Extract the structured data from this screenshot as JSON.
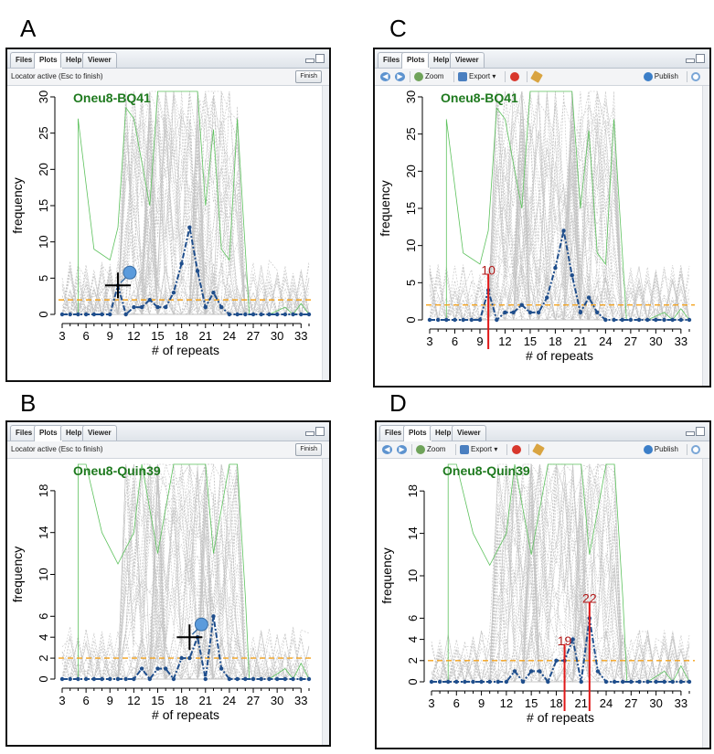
{
  "colors": {
    "gray_line": "#c4c4c4",
    "green_line": "#5ec25e",
    "blue_line": "#1f4e8c",
    "threshold": "#f4a21d",
    "title_green": "#1f7a1f",
    "marker_red": "#e01818",
    "marker_label": "#b11818"
  },
  "panels": [
    {
      "letter": "A",
      "tabs": [
        "Files",
        "Plots",
        "Help",
        "Viewer"
      ],
      "active_tab": "Plots",
      "toolbar_mode": "locator",
      "locator_text": "Locator active (Esc to finish)",
      "finish_label": "Finish",
      "plot_title": "Oneu8-BQ41",
      "cursor": "crosshair-pin-icon",
      "markers": [],
      "chart_data": {
        "type": "line",
        "xlabel": "# of repeats",
        "ylabel": "frequency",
        "xlim": [
          3,
          34
        ],
        "ylim": [
          0,
          30
        ],
        "x_ticks": [
          3,
          6,
          9,
          12,
          15,
          18,
          21,
          24,
          27,
          30,
          33
        ],
        "y_ticks": [
          0,
          5,
          10,
          15,
          20,
          25,
          30
        ],
        "threshold": 2,
        "series": [
          {
            "x": [
              3,
              4,
              5,
              6,
              7,
              8,
              9,
              10,
              11,
              12,
              13,
              14,
              15,
              16,
              17,
              18,
              19,
              20,
              21,
              22,
              23,
              24,
              25,
              26,
              27,
              28,
              29,
              30,
              31,
              32,
              33,
              34
            ],
            "values": [
              0,
              0,
              0,
              0,
              0,
              0,
              0,
              4,
              0,
              1,
              1,
              2,
              1,
              1,
              3,
              7,
              12,
              6,
              1,
              3,
              1,
              0,
              0,
              0,
              0,
              0,
              0,
              0,
              0,
              0,
              0,
              0
            ]
          }
        ]
      }
    },
    {
      "letter": "B",
      "tabs": [
        "Files",
        "Plots",
        "Help",
        "Viewer"
      ],
      "active_tab": "Plots",
      "toolbar_mode": "locator",
      "locator_text": "Locator active (Esc to finish)",
      "finish_label": "Finish",
      "plot_title": "Oneu8-Quin39",
      "cursor": "crosshair-pin-icon",
      "markers": [],
      "chart_data": {
        "type": "line",
        "xlabel": "# of repeats",
        "ylabel": "frequency",
        "xlim": [
          3,
          34
        ],
        "ylim": [
          0,
          20
        ],
        "x_ticks": [
          3,
          6,
          9,
          12,
          15,
          18,
          21,
          24,
          27,
          30,
          33
        ],
        "y_ticks": [
          0,
          2,
          4,
          6,
          10,
          14,
          18
        ],
        "threshold": 2,
        "series": [
          {
            "x": [
              3,
              4,
              5,
              6,
              7,
              8,
              9,
              10,
              11,
              12,
              13,
              14,
              15,
              16,
              17,
              18,
              19,
              20,
              21,
              22,
              23,
              24,
              25,
              26,
              27,
              28,
              29,
              30,
              31,
              32,
              33,
              34
            ],
            "values": [
              0,
              0,
              0,
              0,
              0,
              0,
              0,
              0,
              0,
              0,
              1,
              0,
              1,
              1,
              0,
              2,
              2,
              4,
              0,
              6,
              1,
              0,
              0,
              0,
              0,
              0,
              0,
              0,
              0,
              0,
              0,
              0
            ]
          }
        ]
      }
    },
    {
      "letter": "C",
      "tabs": [
        "Files",
        "Plots",
        "Help",
        "Viewer"
      ],
      "active_tab": "Plots",
      "toolbar_mode": "plots",
      "zoom_label": "Zoom",
      "export_label": "Export ▾",
      "publish_label": "Publish",
      "plot_title": "Oneu8-BQ41",
      "cursor": "",
      "markers": [
        {
          "x": 10,
          "label": "10"
        }
      ],
      "chart_data": {
        "type": "line",
        "xlabel": "# of repeats",
        "ylabel": "frequency",
        "xlim": [
          3,
          34
        ],
        "ylim": [
          0,
          30
        ],
        "x_ticks": [
          3,
          6,
          9,
          12,
          15,
          18,
          21,
          24,
          27,
          30,
          33
        ],
        "y_ticks": [
          0,
          5,
          10,
          15,
          20,
          25,
          30
        ],
        "threshold": 2,
        "series": [
          {
            "x": [
              3,
              4,
              5,
              6,
              7,
              8,
              9,
              10,
              11,
              12,
              13,
              14,
              15,
              16,
              17,
              18,
              19,
              20,
              21,
              22,
              23,
              24,
              25,
              26,
              27,
              28,
              29,
              30,
              31,
              32,
              33,
              34
            ],
            "values": [
              0,
              0,
              0,
              0,
              0,
              0,
              0,
              4,
              0,
              1,
              1,
              2,
              1,
              1,
              3,
              7,
              12,
              6,
              1,
              3,
              1,
              0,
              0,
              0,
              0,
              0,
              0,
              0,
              0,
              0,
              0,
              0
            ]
          }
        ]
      }
    },
    {
      "letter": "D",
      "tabs": [
        "Files",
        "Plots",
        "Help",
        "Viewer"
      ],
      "active_tab": "Plots",
      "toolbar_mode": "plots",
      "zoom_label": "Zoom",
      "export_label": "Export ▾",
      "publish_label": "Publish",
      "plot_title": "Oneu8-Quin39",
      "cursor": "",
      "markers": [
        {
          "x": 19,
          "label": "19"
        },
        {
          "x": 22,
          "label": "22"
        }
      ],
      "chart_data": {
        "type": "line",
        "xlabel": "# of repeats",
        "ylabel": "frequency",
        "xlim": [
          3,
          34
        ],
        "ylim": [
          0,
          20
        ],
        "x_ticks": [
          3,
          6,
          9,
          12,
          15,
          18,
          21,
          24,
          27,
          30,
          33
        ],
        "y_ticks": [
          0,
          2,
          4,
          6,
          10,
          14,
          18
        ],
        "threshold": 2,
        "series": [
          {
            "x": [
              3,
              4,
              5,
              6,
              7,
              8,
              9,
              10,
              11,
              12,
              13,
              14,
              15,
              16,
              17,
              18,
              19,
              20,
              21,
              22,
              23,
              24,
              25,
              26,
              27,
              28,
              29,
              30,
              31,
              32,
              33,
              34
            ],
            "values": [
              0,
              0,
              0,
              0,
              0,
              0,
              0,
              0,
              0,
              0,
              1,
              0,
              1,
              1,
              0,
              2,
              2,
              4,
              0,
              6,
              1,
              0,
              0,
              0,
              0,
              0,
              0,
              0,
              0,
              0,
              0,
              0
            ]
          }
        ]
      }
    }
  ]
}
